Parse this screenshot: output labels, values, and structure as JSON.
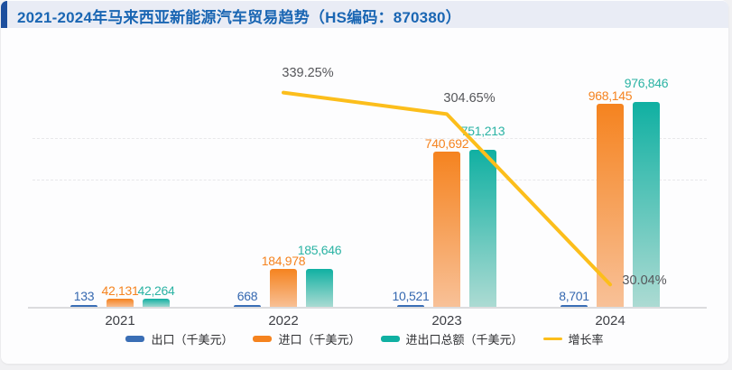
{
  "header": {
    "title": "2021-2024年马来西亚新能源汽车贸易趋势（HS编码：870380）",
    "title_color": "#1a66b3",
    "band_bg": "#e9ecf5",
    "accent_color": "#1d4f9e"
  },
  "chart_data": {
    "type": "bar",
    "subtype": "grouped-bars-with-growth-line",
    "categories": [
      "2021",
      "2022",
      "2023",
      "2024"
    ],
    "series": [
      {
        "name": "出口（千美元）",
        "type": "bar",
        "color": "#3a6eb5",
        "label_color": "#3568b0",
        "values": [
          133,
          668,
          10521,
          8701
        ]
      },
      {
        "name": "进口（千美元）",
        "type": "bar",
        "color_top": "#f5831f",
        "color_bottom": "#f8c198",
        "label_color": "#f5831f",
        "values": [
          42131,
          184978,
          740692,
          968145
        ]
      },
      {
        "name": "进出口总额（千美元）",
        "type": "bar",
        "color_top": "#10b0a2",
        "color_bottom": "#addbd3",
        "label_color": "#2bb3a4",
        "values": [
          42264,
          185646,
          751213,
          976846
        ]
      },
      {
        "name": "增长率",
        "type": "line",
        "color": "#fcbe1b",
        "label_color": "#55565a",
        "unit": "%",
        "values": [
          null,
          339.25,
          304.65,
          30.04
        ]
      }
    ],
    "value_axis_max": 1000000,
    "grid": "dashed-horizontal",
    "legend_position": "bottom",
    "value_labels_shown": true
  }
}
